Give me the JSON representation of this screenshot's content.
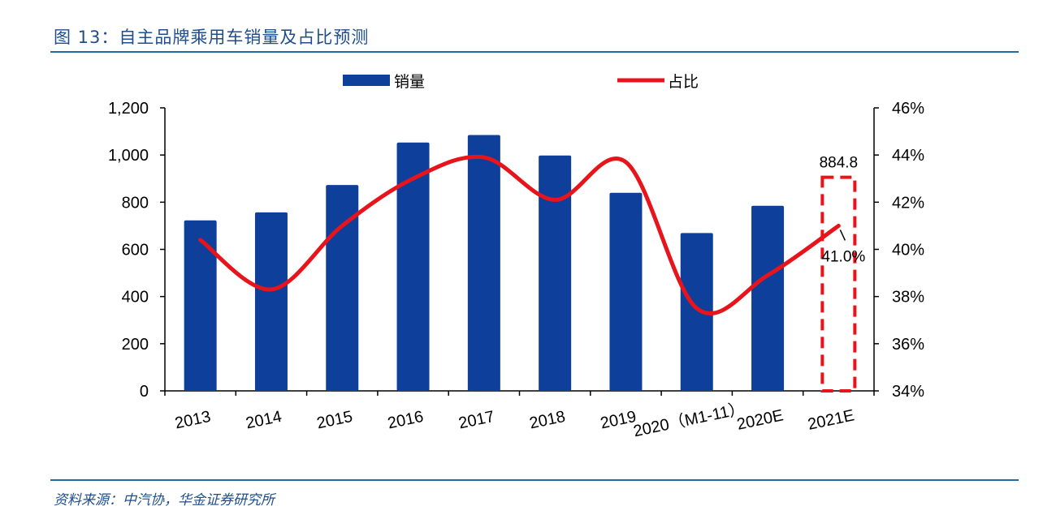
{
  "header": {
    "figure_title": "图 13：自主品牌乘用车销量及占比预测"
  },
  "footer": {
    "source": "资料来源：中汽协，华金证券研究所"
  },
  "colors": {
    "bar": "#0e3f9a",
    "line": "#e8141b",
    "highlight_box": "#e8141b",
    "rule": "#1f6aa8",
    "title_text": "#1f4e8c"
  },
  "chart_data": {
    "type": "bar",
    "categories": [
      "2013",
      "2014",
      "2015",
      "2016",
      "2017",
      "2018",
      "2019",
      "2020（M1-11）",
      "2020E",
      "2021E"
    ],
    "series": [
      {
        "name": "销量",
        "type": "bar",
        "axis": "left",
        "values": [
          723,
          757,
          873,
          1053,
          1085,
          998,
          840,
          669,
          785,
          884.8
        ]
      },
      {
        "name": "占比",
        "type": "line",
        "axis": "right",
        "values": [
          40.4,
          38.3,
          41.0,
          43.0,
          43.9,
          42.1,
          43.7,
          37.5,
          38.9,
          41.0
        ]
      }
    ],
    "y_left": {
      "ylim": [
        0,
        1200
      ],
      "ticks": [
        "0",
        "200",
        "400",
        "600",
        "800",
        "1,000",
        "1,200"
      ]
    },
    "y_right": {
      "ylim": [
        34,
        46
      ],
      "ticks": [
        "34%",
        "36%",
        "38%",
        "40%",
        "42%",
        "44%",
        "46%"
      ]
    },
    "annotations": [
      {
        "category": "2021E",
        "series": "销量",
        "text": "884.8"
      },
      {
        "category": "2021E",
        "series": "占比",
        "text": "41.0%"
      }
    ],
    "highlight": {
      "category": "2021E",
      "style": "dashed-box"
    },
    "legend": {
      "placement": "top-center"
    },
    "grid": false
  }
}
